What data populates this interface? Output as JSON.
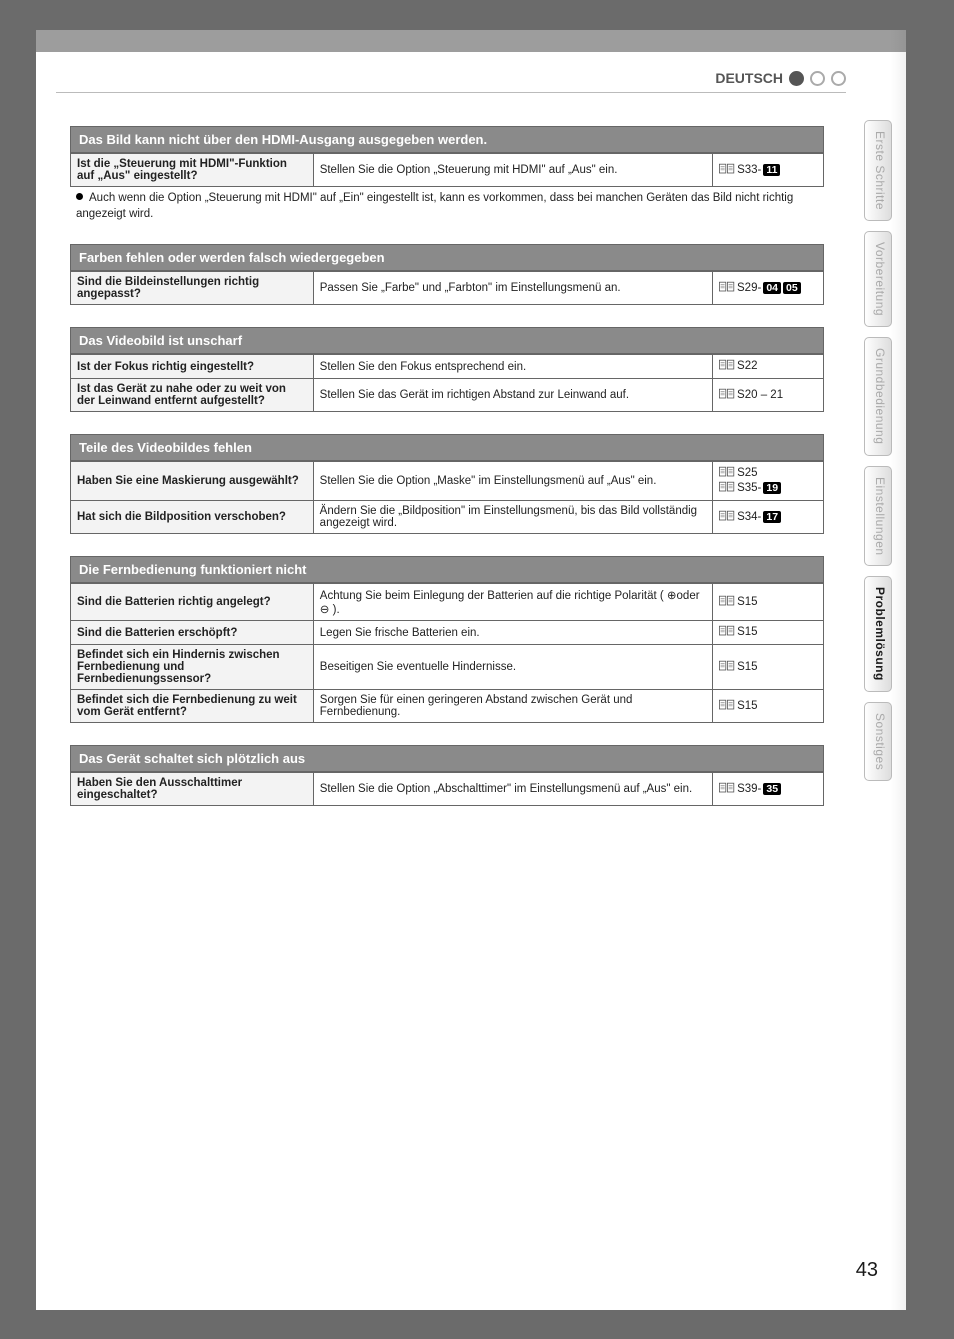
{
  "language_label": "DEUTSCH",
  "page_number": "43",
  "side_tabs": [
    {
      "label": "Erste Schritte",
      "active": false
    },
    {
      "label": "Vorbereitung",
      "active": false
    },
    {
      "label": "Grundbedienung",
      "active": false
    },
    {
      "label": "Einstellungen",
      "active": false
    },
    {
      "label": "Problemlösung",
      "active": true
    },
    {
      "label": "Sonstiges",
      "active": false
    }
  ],
  "sections": [
    {
      "id": "hdmi",
      "title": "Das Bild kann nicht über den HDMI-Ausgang ausgegeben werden.",
      "rows": [
        {
          "q": "Ist die „Steuerung mit HDMI\"-Funktion auf „Aus\" eingestellt?",
          "a": "Stellen Sie die Option „Steuerung mit HDMI\" auf „Aus\" ein.",
          "ref_prefix": "S33-",
          "badges": [
            "11"
          ]
        }
      ],
      "note": "Auch wenn die Option „Steuerung mit HDMI\" auf „Ein\" eingestellt ist, kann es vorkommen, dass bei manchen Geräten das Bild nicht richtig angezeigt wird."
    },
    {
      "id": "farben",
      "title": "Farben fehlen oder werden falsch wiedergegeben",
      "rows": [
        {
          "q": "Sind die Bildeinstellungen richtig angepasst?",
          "a": "Passen Sie „Farbe\" und „Farbton\" im Einstellungsmenü an.",
          "ref_prefix": "S29-",
          "badges": [
            "04",
            "05"
          ]
        }
      ]
    },
    {
      "id": "unscharf",
      "title": "Das Videobild ist unscharf",
      "rows": [
        {
          "q": "Ist der Fokus richtig eingestellt?",
          "a": "Stellen Sie den Fokus entsprechend ein.",
          "ref_prefix": "S22",
          "badges": []
        },
        {
          "q": "Ist das Gerät zu nahe oder zu weit von der Leinwand entfernt aufgestellt?",
          "a": "Stellen Sie das Gerät im richtigen Abstand zur Leinwand auf.",
          "ref_prefix": "S20 – 21",
          "badges": []
        }
      ]
    },
    {
      "id": "teile",
      "title": "Teile des Videobildes fehlen",
      "rows": [
        {
          "q": "Haben Sie eine Maskierung ausgewählt?",
          "a": "Stellen Sie die Option „Maske\" im Einstellungsmenü auf „Aus\" ein.",
          "ref_multi": [
            {
              "prefix": "S25",
              "badges": []
            },
            {
              "prefix": "S35-",
              "badges": [
                "19"
              ]
            }
          ]
        },
        {
          "q": "Hat sich die Bildposition verschoben?",
          "a": "Ändern Sie die „Bildposition\" im Einstellungsmenü, bis das Bild vollständig angezeigt wird.",
          "ref_prefix": "S34-",
          "badges": [
            "17"
          ]
        }
      ]
    },
    {
      "id": "fernbedienung",
      "title": "Die Fernbedienung funktioniert nicht",
      "rows": [
        {
          "q": "Sind die Batterien richtig angelegt?",
          "a_html": "Achtung Sie beim Einlegung der Batterien auf die richtige Polarität ( ⊕oder ⊖ ).",
          "ref_prefix": "S15",
          "badges": []
        },
        {
          "q": "Sind die Batterien erschöpft?",
          "a": "Legen Sie frische Batterien ein.",
          "ref_prefix": "S15",
          "badges": []
        },
        {
          "q": "Befindet sich ein Hindernis zwischen Fernbedienung und Fernbedienungssensor?",
          "a": "Beseitigen Sie eventuelle Hindernisse.",
          "ref_prefix": "S15",
          "badges": []
        },
        {
          "q": "Befindet sich die Fernbedienung zu weit vom Gerät entfernt?",
          "a": "Sorgen Sie für einen geringeren Abstand zwischen Gerät und Fernbedienung.",
          "ref_prefix": "S15",
          "badges": []
        }
      ]
    },
    {
      "id": "schaltet-aus",
      "title": "Das Gerät schaltet sich plötzlich aus",
      "rows": [
        {
          "q": "Haben Sie den Ausschalttimer eingeschaltet?",
          "a": "Stellen Sie die Option „Abschalttimer\" im Einstellungsmenü auf „Aus\" ein.",
          "ref_prefix": "S39-",
          "badges": [
            "35"
          ]
        }
      ]
    }
  ]
}
